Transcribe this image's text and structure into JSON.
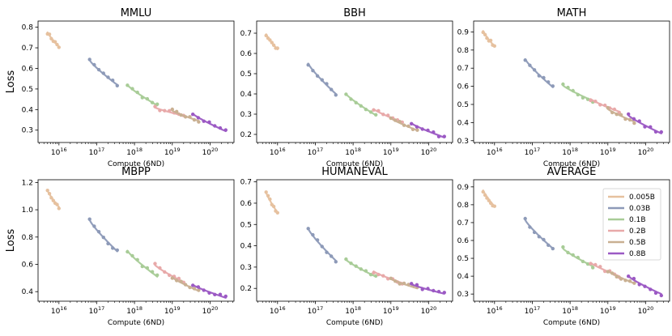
{
  "chart_data": {
    "type": "line",
    "figure_ylabel": "Loss",
    "xlabel": "Compute (6ND)",
    "x_scale": "log",
    "xlim": [
      2800000000000000.0,
      4.3e+20
    ],
    "x_tick_values": [
      1e+16,
      1e+17,
      1e+18,
      1e+19,
      1e+20
    ],
    "x_tick_labels": [
      {
        "base": "10",
        "exp": "16"
      },
      {
        "base": "10",
        "exp": "17"
      },
      {
        "base": "10",
        "exp": "18"
      },
      {
        "base": "10",
        "exp": "19"
      },
      {
        "base": "10",
        "exp": "20"
      }
    ],
    "legend": {
      "position": "inside top-right of last panel",
      "entries": [
        {
          "label": "0.005B",
          "color": "#E6C19F"
        },
        {
          "label": "0.03B",
          "color": "#8D9AB8"
        },
        {
          "label": "0.1B",
          "color": "#A8CC97"
        },
        {
          "label": "0.2B",
          "color": "#E8A9A9"
        },
        {
          "label": "0.5B",
          "color": "#C9B092"
        },
        {
          "label": "0.8B",
          "color": "#9B59C4"
        }
      ]
    },
    "size_ranges": [
      {
        "x_start": 5000000000000000.0,
        "x_end": 1e+16
      },
      {
        "x_start": 6.5e+16,
        "x_end": 3.5e+17
      },
      {
        "x_start": 6.5e+17,
        "x_end": 4e+18
      },
      {
        "x_start": 3.5e+18,
        "x_end": 2e+19
      },
      {
        "x_start": 1e+19,
        "x_end": 5e+19
      },
      {
        "x_start": 3.5e+19,
        "x_end": 2.6e+20
      }
    ],
    "panels": [
      {
        "title": "MMLU",
        "ylim": [
          0.24,
          0.83
        ],
        "y_ticks": [
          0.3,
          0.4,
          0.5,
          0.6,
          0.7,
          0.8
        ],
        "y_tick_labels": [
          "0.3",
          "0.4",
          "0.5",
          "0.6",
          "0.7",
          "0.8"
        ],
        "show_ylabel": true,
        "series": [
          {
            "name": "0.005B",
            "start": 0.775,
            "end": 0.705
          },
          {
            "name": "0.03B",
            "start": 0.64,
            "end": 0.52
          },
          {
            "name": "0.1B",
            "start": 0.52,
            "end": 0.42
          },
          {
            "name": "0.2B",
            "start": 0.41,
            "end": 0.37
          },
          {
            "name": "0.5B",
            "start": 0.395,
            "end": 0.345
          },
          {
            "name": "0.8B",
            "start": 0.38,
            "end": 0.295
          }
        ]
      },
      {
        "title": "BBH",
        "ylim": [
          0.16,
          0.76
        ],
        "y_ticks": [
          0.2,
          0.3,
          0.4,
          0.5,
          0.6,
          0.7
        ],
        "y_tick_labels": [
          "0.2",
          "0.3",
          "0.4",
          "0.5",
          "0.6",
          "0.7"
        ],
        "show_ylabel": false,
        "series": [
          {
            "name": "0.005B",
            "start": 0.695,
            "end": 0.62
          },
          {
            "name": "0.03B",
            "start": 0.55,
            "end": 0.4
          },
          {
            "name": "0.1B",
            "start": 0.4,
            "end": 0.295
          },
          {
            "name": "0.2B",
            "start": 0.325,
            "end": 0.26
          },
          {
            "name": "0.5B",
            "start": 0.28,
            "end": 0.22
          },
          {
            "name": "0.8B",
            "start": 0.255,
            "end": 0.185
          }
        ]
      },
      {
        "title": "MATH",
        "ylim": [
          0.29,
          0.96
        ],
        "y_ticks": [
          0.3,
          0.4,
          0.5,
          0.6,
          0.7,
          0.8,
          0.9
        ],
        "y_tick_labels": [
          "0.3",
          "0.4",
          "0.5",
          "0.6",
          "0.7",
          "0.8",
          "0.9"
        ],
        "show_ylabel": false,
        "series": [
          {
            "name": "0.005B",
            "start": 0.905,
            "end": 0.82
          },
          {
            "name": "0.03B",
            "start": 0.75,
            "end": 0.595
          },
          {
            "name": "0.1B",
            "start": 0.605,
            "end": 0.52
          },
          {
            "name": "0.2B",
            "start": 0.53,
            "end": 0.46
          },
          {
            "name": "0.5B",
            "start": 0.475,
            "end": 0.405
          },
          {
            "name": "0.8B",
            "start": 0.44,
            "end": 0.34
          }
        ]
      },
      {
        "title": "MBPP",
        "ylim": [
          0.33,
          1.22
        ],
        "y_ticks": [
          0.4,
          0.6,
          0.8,
          1.0,
          1.2
        ],
        "y_tick_labels": [
          "0.4",
          "0.6",
          "0.8",
          "1.0",
          "1.2"
        ],
        "show_ylabel": true,
        "series": [
          {
            "name": "0.005B",
            "start": 1.14,
            "end": 1.02
          },
          {
            "name": "0.03B",
            "start": 0.925,
            "end": 0.695
          },
          {
            "name": "0.1B",
            "start": 0.7,
            "end": 0.51
          },
          {
            "name": "0.2B",
            "start": 0.595,
            "end": 0.47
          },
          {
            "name": "0.5B",
            "start": 0.505,
            "end": 0.405
          },
          {
            "name": "0.8B",
            "start": 0.45,
            "end": 0.355
          }
        ]
      },
      {
        "title": "HUMANEVAL",
        "ylim": [
          0.14,
          0.71
        ],
        "y_ticks": [
          0.2,
          0.3,
          0.4,
          0.5,
          0.6,
          0.7
        ],
        "y_tick_labels": [
          "0.2",
          "0.3",
          "0.4",
          "0.5",
          "0.6",
          "0.7"
        ],
        "show_ylabel": false,
        "series": [
          {
            "name": "0.005B",
            "start": 0.65,
            "end": 0.555
          },
          {
            "name": "0.03B",
            "start": 0.48,
            "end": 0.33
          },
          {
            "name": "0.1B",
            "start": 0.335,
            "end": 0.255
          },
          {
            "name": "0.2B",
            "start": 0.28,
            "end": 0.225
          },
          {
            "name": "0.5B",
            "start": 0.245,
            "end": 0.2
          },
          {
            "name": "0.8B",
            "start": 0.22,
            "end": 0.175
          }
        ]
      },
      {
        "title": "AVERAGE",
        "ylim": [
          0.26,
          0.94
        ],
        "y_ticks": [
          0.3,
          0.4,
          0.5,
          0.6,
          0.7,
          0.8,
          0.9
        ],
        "y_tick_labels": [
          "0.3",
          "0.4",
          "0.5",
          "0.6",
          "0.7",
          "0.8",
          "0.9"
        ],
        "show_ylabel": false,
        "series": [
          {
            "name": "0.005B",
            "start": 0.88,
            "end": 0.79
          },
          {
            "name": "0.03B",
            "start": 0.715,
            "end": 0.555
          },
          {
            "name": "0.1B",
            "start": 0.555,
            "end": 0.455
          },
          {
            "name": "0.2B",
            "start": 0.475,
            "end": 0.4
          },
          {
            "name": "0.5B",
            "start": 0.43,
            "end": 0.36
          },
          {
            "name": "0.8B",
            "start": 0.4,
            "end": 0.3
          }
        ]
      }
    ]
  }
}
